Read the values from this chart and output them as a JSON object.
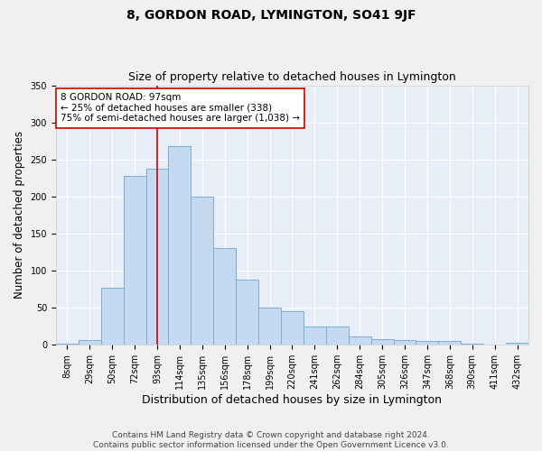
{
  "title": "8, GORDON ROAD, LYMINGTON, SO41 9JF",
  "subtitle": "Size of property relative to detached houses in Lymington",
  "xlabel": "Distribution of detached houses by size in Lymington",
  "ylabel": "Number of detached properties",
  "bar_color": "#c5d9f0",
  "bar_edge_color": "#7badd4",
  "background_color": "#e8eef8",
  "grid_color": "#ffffff",
  "categories": [
    "8sqm",
    "29sqm",
    "50sqm",
    "72sqm",
    "93sqm",
    "114sqm",
    "135sqm",
    "156sqm",
    "178sqm",
    "199sqm",
    "220sqm",
    "241sqm",
    "262sqm",
    "284sqm",
    "305sqm",
    "326sqm",
    "347sqm",
    "368sqm",
    "390sqm",
    "411sqm",
    "432sqm"
  ],
  "values": [
    2,
    6,
    77,
    228,
    238,
    268,
    200,
    131,
    88,
    50,
    45,
    25,
    25,
    11,
    8,
    7,
    5,
    5,
    2,
    0,
    3
  ],
  "property_line_index": 4.5,
  "property_line_color": "#cc0000",
  "annotation_text": "8 GORDON ROAD: 97sqm\n← 25% of detached houses are smaller (338)\n75% of semi-detached houses are larger (1,038) →",
  "annotation_box_color": "#ffffff",
  "annotation_box_edge": "#cc0000",
  "ylim": [
    0,
    350
  ],
  "yticks": [
    0,
    50,
    100,
    150,
    200,
    250,
    300,
    350
  ],
  "footer_line1": "Contains HM Land Registry data © Crown copyright and database right 2024.",
  "footer_line2": "Contains public sector information licensed under the Open Government Licence v3.0.",
  "title_fontsize": 10,
  "subtitle_fontsize": 9,
  "xlabel_fontsize": 9,
  "ylabel_fontsize": 8.5,
  "tick_fontsize": 7,
  "annotation_fontsize": 7.5,
  "footer_fontsize": 6.5
}
